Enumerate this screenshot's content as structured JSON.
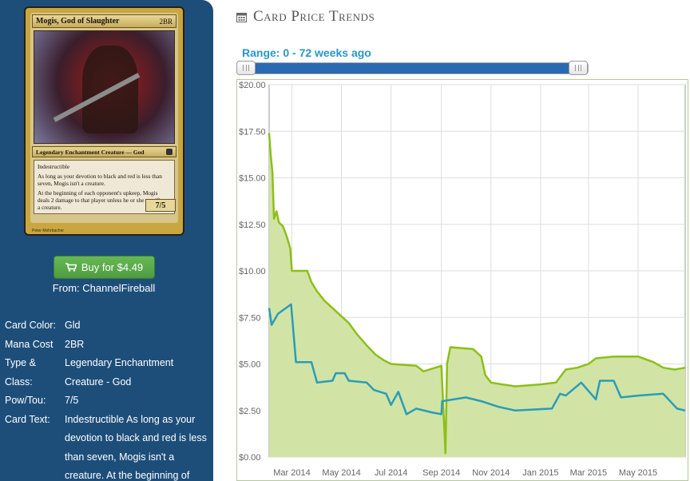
{
  "card": {
    "name": "Mogis, God of Slaughter",
    "mana_symbols": "2BR",
    "type_line": "Legendary Enchantment Creature — God",
    "text_lines": [
      "Indestructible",
      "As long as your devotion to black and red is less than seven, Mogis isn't a creature.",
      "At the beginning of each opponent's upkeep, Mogis deals 2 damage to that player unless he or she sacrifices a creature."
    ],
    "power_toughness": "7/5",
    "artist": "Peter Mohrbacher"
  },
  "buy": {
    "label": "Buy for $4.49",
    "icon": "cart-icon",
    "from": "From: ChannelFireball"
  },
  "details": [
    {
      "key": "Card Color:",
      "value": "Gld"
    },
    {
      "key": "Mana Cost",
      "value": "2BR"
    },
    {
      "key": "Type & Class:",
      "value": "Legendary Enchantment Creature - God"
    },
    {
      "key": "Pow/Tou:",
      "value": "7/5"
    },
    {
      "key": "Card Text:",
      "value": "Indestructible As long as your devotion to black and red is less than seven, Mogis isn't a creature. At the beginning of"
    }
  ],
  "header": {
    "title": "Card Price Trends",
    "icon": "calendar-icon"
  },
  "range": {
    "label": "Range: 0 - 72 weeks ago",
    "min_weeks": 0,
    "max_weeks": 72
  },
  "colors": {
    "sidebar": "#1d4e7a",
    "button": "#5cac4a",
    "range_text": "#2a96c8",
    "slider": "#2a6ab3",
    "series_fill": "#cfe3a0",
    "series_green": "#8cbf1a",
    "series_blue": "#2a9cb8"
  },
  "chart_data": {
    "type": "line",
    "title": "",
    "xlabel": "",
    "ylabel": "",
    "ylim": [
      0,
      20
    ],
    "yticks": [
      "$0.00",
      "$2.50",
      "$5.00",
      "$7.50",
      "$10.00",
      "$12.50",
      "$15.00",
      "$17.50",
      "$20.00"
    ],
    "xticks": [
      "Mar 2014",
      "May 2014",
      "Jul 2014",
      "Sep 2014",
      "Nov 2014",
      "Jan 2015",
      "Mar 2015",
      "May 2015"
    ],
    "xlim": [
      "2014-02-01",
      "2015-06-28"
    ],
    "grid": true,
    "series": [
      {
        "color": "#8cbf1a",
        "fill": true,
        "points": [
          [
            "2014-02-01",
            17.4
          ],
          [
            "2014-02-03",
            16.2
          ],
          [
            "2014-02-05",
            15.3
          ],
          [
            "2014-02-07",
            12.8
          ],
          [
            "2014-02-10",
            13.2
          ],
          [
            "2014-02-13",
            12.6
          ],
          [
            "2014-02-18",
            12.4
          ],
          [
            "2014-02-23",
            11.8
          ],
          [
            "2014-02-27",
            11.2
          ],
          [
            "2014-03-01",
            10.0
          ],
          [
            "2014-03-20",
            10.0
          ],
          [
            "2014-03-25",
            9.4
          ],
          [
            "2014-04-01",
            8.9
          ],
          [
            "2014-04-10",
            8.4
          ],
          [
            "2014-04-20",
            8.0
          ],
          [
            "2014-04-30",
            7.6
          ],
          [
            "2014-05-10",
            7.2
          ],
          [
            "2014-05-20",
            6.6
          ],
          [
            "2014-06-01",
            6.0
          ],
          [
            "2014-06-12",
            5.5
          ],
          [
            "2014-06-22",
            5.2
          ],
          [
            "2014-07-01",
            5.0
          ],
          [
            "2014-08-01",
            4.9
          ],
          [
            "2014-08-10",
            4.6
          ],
          [
            "2014-09-01",
            4.9
          ],
          [
            "2014-09-06",
            0.2
          ],
          [
            "2014-09-08",
            5.0
          ],
          [
            "2014-09-12",
            5.9
          ],
          [
            "2014-10-10",
            5.8
          ],
          [
            "2014-10-20",
            5.4
          ],
          [
            "2014-10-25",
            4.4
          ],
          [
            "2014-11-01",
            4.0
          ],
          [
            "2014-11-15",
            3.9
          ],
          [
            "2014-12-01",
            3.8
          ],
          [
            "2015-01-01",
            3.9
          ],
          [
            "2015-01-20",
            4.0
          ],
          [
            "2015-02-01",
            4.7
          ],
          [
            "2015-02-15",
            4.8
          ],
          [
            "2015-03-01",
            5.0
          ],
          [
            "2015-03-10",
            5.3
          ],
          [
            "2015-04-01",
            5.4
          ],
          [
            "2015-05-01",
            5.4
          ],
          [
            "2015-05-20",
            5.1
          ],
          [
            "2015-06-01",
            4.8
          ],
          [
            "2015-06-15",
            4.7
          ],
          [
            "2015-06-28",
            4.8
          ]
        ]
      },
      {
        "color": "#2a9cb8",
        "fill": false,
        "points": [
          [
            "2014-02-01",
            8.0
          ],
          [
            "2014-02-04",
            7.1
          ],
          [
            "2014-02-12",
            7.7
          ],
          [
            "2014-02-28",
            8.2
          ],
          [
            "2014-03-06",
            5.1
          ],
          [
            "2014-03-25",
            5.1
          ],
          [
            "2014-04-01",
            4.0
          ],
          [
            "2014-04-20",
            4.1
          ],
          [
            "2014-04-24",
            4.5
          ],
          [
            "2014-05-05",
            4.5
          ],
          [
            "2014-05-10",
            4.1
          ],
          [
            "2014-06-01",
            4.0
          ],
          [
            "2014-06-10",
            3.6
          ],
          [
            "2014-06-25",
            3.4
          ],
          [
            "2014-07-01",
            2.8
          ],
          [
            "2014-07-10",
            3.5
          ],
          [
            "2014-07-20",
            2.3
          ],
          [
            "2014-08-01",
            2.6
          ],
          [
            "2014-08-20",
            2.4
          ],
          [
            "2014-09-01",
            2.3
          ],
          [
            "2014-09-02",
            3.0
          ],
          [
            "2014-10-01",
            3.2
          ],
          [
            "2014-10-20",
            3.0
          ],
          [
            "2014-11-10",
            2.7
          ],
          [
            "2014-12-01",
            2.5
          ],
          [
            "2015-01-15",
            2.6
          ],
          [
            "2015-01-25",
            3.4
          ],
          [
            "2015-02-01",
            3.3
          ],
          [
            "2015-02-20",
            4.0
          ],
          [
            "2015-03-10",
            3.1
          ],
          [
            "2015-03-15",
            4.1
          ],
          [
            "2015-04-01",
            4.1
          ],
          [
            "2015-04-10",
            3.2
          ],
          [
            "2015-05-01",
            3.3
          ],
          [
            "2015-06-01",
            3.4
          ],
          [
            "2015-06-18",
            2.6
          ],
          [
            "2015-06-28",
            2.5
          ]
        ]
      }
    ]
  }
}
